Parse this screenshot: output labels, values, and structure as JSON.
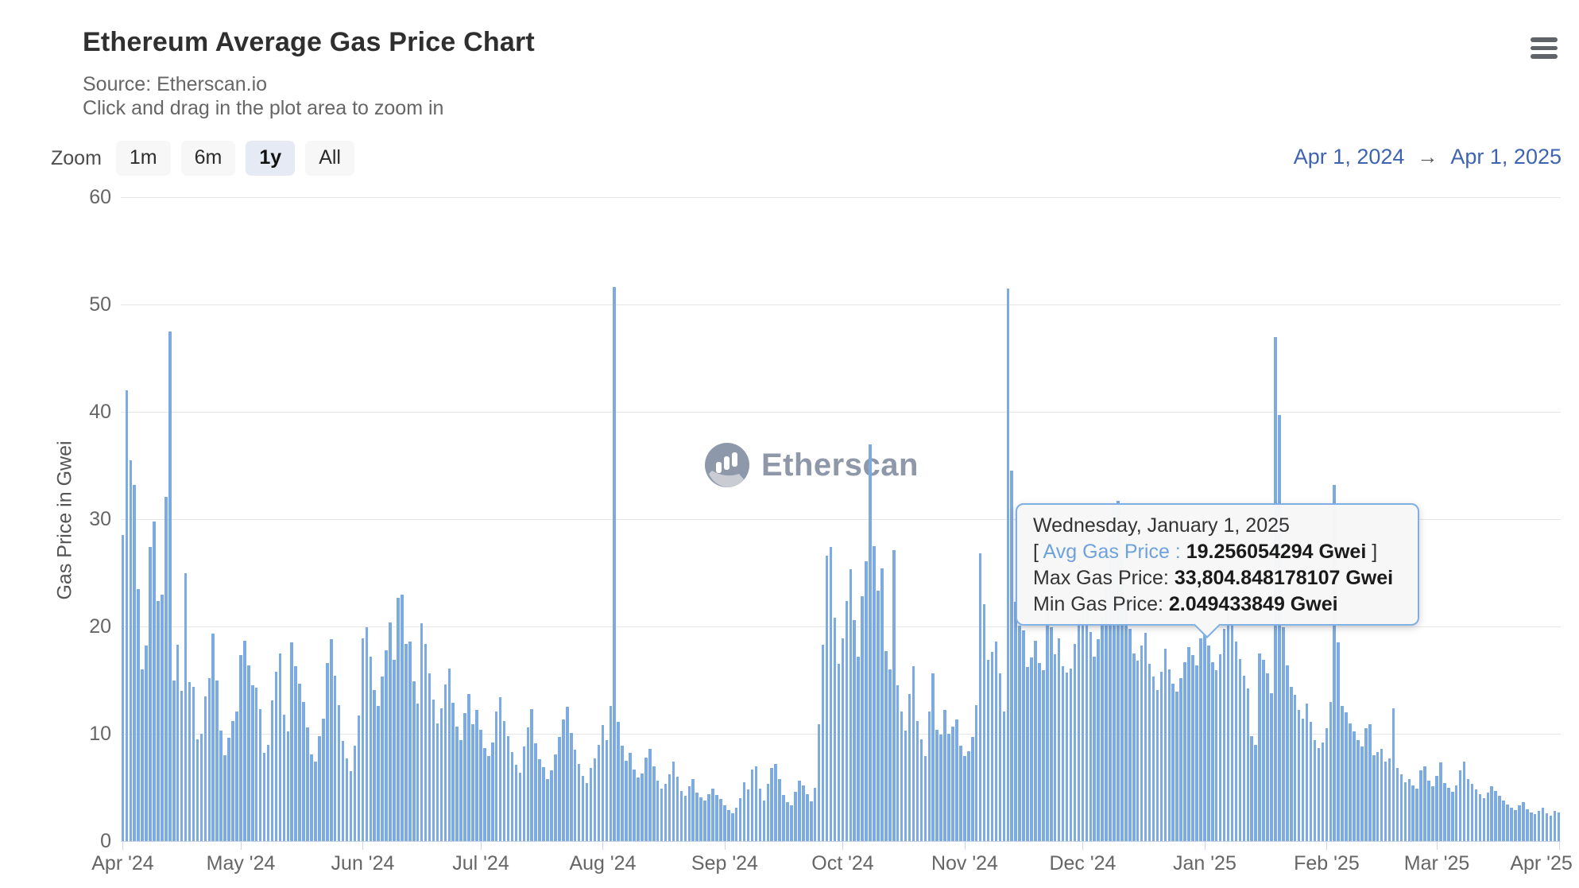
{
  "header": {
    "title": "Ethereum Average Gas Price Chart",
    "subtitle_source": "Source: Etherscan.io",
    "subtitle_hint": "Click and drag in the plot area to zoom in"
  },
  "toolbar": {
    "zoom_label": "Zoom",
    "buttons": [
      {
        "label": "1m",
        "selected": false
      },
      {
        "label": "6m",
        "selected": false
      },
      {
        "label": "1y",
        "selected": true
      },
      {
        "label": "All",
        "selected": false
      }
    ],
    "range_from": "Apr 1, 2024",
    "range_arrow": "→",
    "range_to": "Apr 1, 2025"
  },
  "watermark": {
    "text": "Etherscan"
  },
  "tooltip": {
    "date": "Wednesday, January 1, 2025",
    "avg_prefix": "[ ",
    "avg_label": "Avg Gas Price : ",
    "avg_value": "19.256054294 Gwei",
    "avg_suffix": " ]",
    "max_label": "Max Gas Price: ",
    "max_value": "33,804.848178107 Gwei",
    "min_label": "Min Gas Price: ",
    "min_value": "2.049433849 Gwei"
  },
  "colors": {
    "bar": "#7cabe3",
    "grid": "#e6e6e6",
    "axis_line": "#ccd6eb",
    "accent_blue": "#3e63b0",
    "tooltip_border": "#7fafe3",
    "selected_button_bg": "#e6eaf4"
  },
  "chart_data": {
    "type": "bar",
    "title": "Ethereum Average Gas Price Chart",
    "ylabel": "Gas Price in Gwei",
    "xlabel": "",
    "ylim": [
      0,
      60
    ],
    "yticks": [
      0,
      10,
      20,
      30,
      40,
      50,
      60
    ],
    "grid": true,
    "legend": false,
    "series_name": "Avg Gas Price",
    "unit": "Gwei",
    "start_date": "2024-04-01",
    "end_date": "2025-04-01",
    "months": [
      {
        "label": "Apr '24",
        "day": 0
      },
      {
        "label": "May '24",
        "day": 30
      },
      {
        "label": "Jun '24",
        "day": 61
      },
      {
        "label": "Jul '24",
        "day": 91
      },
      {
        "label": "Aug '24",
        "day": 122
      },
      {
        "label": "Sep '24",
        "day": 153
      },
      {
        "label": "Oct '24",
        "day": 183
      },
      {
        "label": "Nov '24",
        "day": 214
      },
      {
        "label": "Dec '24",
        "day": 244
      },
      {
        "label": "Jan '25",
        "day": 275
      },
      {
        "label": "Feb '25",
        "day": 306
      },
      {
        "label": "Mar '25",
        "day": 334
      },
      {
        "label": "Apr '25",
        "day": 365
      }
    ],
    "highlight": {
      "day_index": 275,
      "date": "2025-01-01",
      "avg_gwei": 19.256054294,
      "max_gwei": 33804.848178107,
      "min_gwei": 2.049433849
    },
    "daily_avg_gwei": [
      28.5,
      42.0,
      35.5,
      33.2,
      23.5,
      16.0,
      18.2,
      27.4,
      29.8,
      22.4,
      23.0,
      32.1,
      47.5,
      15.0,
      18.3,
      14.0,
      25.0,
      14.8,
      14.4,
      9.5,
      10.0,
      13.5,
      15.2,
      19.3,
      15.0,
      10.3,
      8.0,
      9.6,
      11.2,
      12.1,
      17.3,
      18.7,
      16.4,
      14.5,
      14.3,
      12.3,
      8.2,
      9.0,
      13.1,
      15.8,
      17.5,
      11.8,
      10.2,
      18.5,
      16.3,
      14.7,
      13.0,
      10.6,
      8.1,
      7.4,
      9.8,
      11.4,
      16.6,
      18.8,
      15.4,
      12.7,
      9.3,
      7.7,
      6.5,
      8.9,
      11.7,
      18.9,
      19.9,
      17.2,
      14.1,
      12.6,
      15.3,
      17.8,
      20.4,
      16.9,
      22.7,
      23.0,
      18.4,
      18.6,
      14.9,
      12.8,
      20.3,
      18.4,
      15.6,
      13.2,
      11.0,
      12.4,
      14.6,
      16.1,
      12.9,
      10.7,
      9.4,
      11.9,
      13.7,
      10.9,
      12.2,
      10.4,
      8.7,
      7.9,
      9.2,
      12.1,
      13.4,
      11.2,
      9.8,
      8.3,
      7.1,
      6.4,
      8.8,
      10.6,
      12.3,
      9.1,
      7.6,
      6.9,
      5.8,
      6.6,
      8.1,
      9.7,
      11.3,
      12.5,
      10.1,
      8.5,
      7.2,
      6.1,
      5.4,
      6.8,
      7.7,
      9.0,
      10.8,
      9.4,
      12.6,
      51.6,
      11.1,
      8.9,
      7.5,
      8.2,
      6.7,
      5.9,
      6.3,
      7.8,
      8.6,
      7.0,
      5.6,
      4.9,
      5.3,
      6.2,
      7.4,
      6.0,
      4.7,
      4.2,
      5.1,
      5.8,
      4.5,
      4.1,
      3.8,
      4.4,
      4.9,
      4.3,
      3.9,
      3.3,
      2.9,
      2.6,
      3.1,
      4.0,
      5.5,
      4.8,
      6.7,
      7.0,
      4.9,
      3.8,
      5.3,
      6.8,
      7.2,
      5.8,
      4.3,
      3.6,
      3.3,
      4.6,
      5.6,
      5.2,
      4.4,
      3.7,
      5.0,
      10.9,
      18.3,
      26.6,
      27.4,
      20.8,
      16.5,
      18.9,
      22.4,
      25.3,
      20.6,
      17.2,
      22.8,
      26.1,
      37.0,
      27.5,
      23.3,
      25.4,
      17.7,
      16.0,
      27.1,
      14.5,
      12.1,
      10.3,
      13.7,
      16.3,
      11.2,
      9.5,
      7.9,
      12.1,
      15.6,
      10.4,
      9.9,
      12.2,
      10.0,
      10.7,
      11.3,
      8.9,
      7.9,
      8.4,
      9.7,
      12.7,
      26.8,
      22.1,
      16.9,
      17.6,
      18.6,
      15.6,
      12.1,
      51.5,
      34.5,
      22.3,
      20.1,
      19.6,
      16.2,
      17.1,
      18.7,
      16.6,
      15.9,
      21.6,
      19.9,
      17.4,
      18.9,
      16.3,
      15.7,
      16.1,
      18.4,
      20.6,
      23.1,
      21.8,
      19.5,
      17.2,
      18.8,
      20.9,
      23.6,
      28.4,
      31.5,
      31.7,
      26.2,
      22.7,
      19.8,
      17.5,
      16.8,
      18.2,
      19.4,
      16.5,
      15.3,
      14.1,
      15.8,
      17.9,
      16.0,
      14.7,
      13.9,
      15.2,
      16.7,
      18.1,
      17.3,
      16.4,
      18.9,
      19.256054294,
      18.2,
      16.7,
      15.9,
      17.4,
      19.8,
      22.5,
      20.3,
      18.6,
      17.0,
      15.4,
      14.2,
      9.8,
      9.0,
      17.5,
      16.9,
      15.6,
      13.8,
      47.0,
      39.7,
      19.9,
      16.4,
      14.4,
      13.6,
      12.2,
      11.4,
      12.8,
      11.1,
      9.4,
      8.7,
      9.2,
      10.5,
      13.0,
      33.2,
      18.5,
      12.6,
      12.0,
      11.0,
      10.2,
      9.4,
      8.8,
      10.5,
      10.9,
      8.0,
      8.3,
      8.6,
      7.4,
      7.7,
      12.4,
      6.8,
      6.2,
      5.5,
      5.8,
      5.2,
      4.9,
      6.6,
      7.0,
      5.6,
      5.1,
      6.1,
      7.3,
      5.4,
      5.0,
      4.6,
      5.2,
      6.6,
      7.4,
      5.8,
      5.3,
      4.8,
      4.4,
      4.0,
      4.5,
      5.1,
      4.7,
      4.2,
      3.8,
      3.4,
      3.1,
      2.9,
      3.3,
      3.6,
      3.0,
      2.7,
      2.5,
      2.8,
      3.1,
      2.6,
      2.4,
      2.8,
      2.7
    ]
  }
}
